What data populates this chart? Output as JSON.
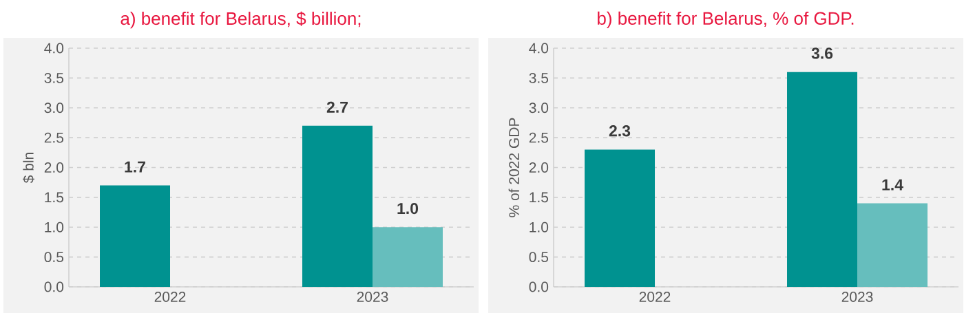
{
  "chart_data": [
    {
      "type": "bar",
      "title": "a) benefit for Belarus, $ billion;",
      "ylabel": "$ bln",
      "categories": [
        "2022",
        "2023"
      ],
      "series": [
        {
          "color": "#009290",
          "values": [
            1.7,
            2.7
          ],
          "value_labels": [
            "1.7",
            "2.7"
          ]
        },
        {
          "color": "#66bebd",
          "values": [
            null,
            1.0
          ],
          "value_labels": [
            null,
            "1.0"
          ]
        }
      ],
      "ylim": [
        0,
        4
      ],
      "yticks": [
        {
          "value": 0,
          "label": "0.0"
        },
        0.5,
        {
          "value": 1,
          "label": "1.0"
        },
        1.5,
        {
          "value": 2,
          "label": "2.0"
        },
        2.5,
        {
          "value": 3,
          "label": "3.0"
        },
        3.5,
        {
          "value": 4,
          "label": "4.0"
        }
      ],
      "grid": "y"
    },
    {
      "type": "bar",
      "title": "b) benefit for Belarus, % of GDP.",
      "ylabel": "% of 2022 GDP",
      "categories": [
        "2022",
        "2023"
      ],
      "series": [
        {
          "color": "#009290",
          "values": [
            2.3,
            3.6
          ],
          "value_labels": [
            "2.3",
            "3.6"
          ]
        },
        {
          "color": "#66bebd",
          "values": [
            null,
            1.4
          ],
          "value_labels": [
            null,
            "1.4"
          ]
        }
      ],
      "ylim": [
        0,
        4
      ],
      "yticks": [
        {
          "value": 0,
          "label": "0.0"
        },
        0.5,
        {
          "value": 1,
          "label": "1.0"
        },
        1.5,
        {
          "value": 2,
          "label": "2.0"
        },
        2.5,
        {
          "value": 3,
          "label": "3.0"
        },
        3.5,
        {
          "value": 4,
          "label": "4.0"
        }
      ],
      "grid": "y"
    }
  ]
}
